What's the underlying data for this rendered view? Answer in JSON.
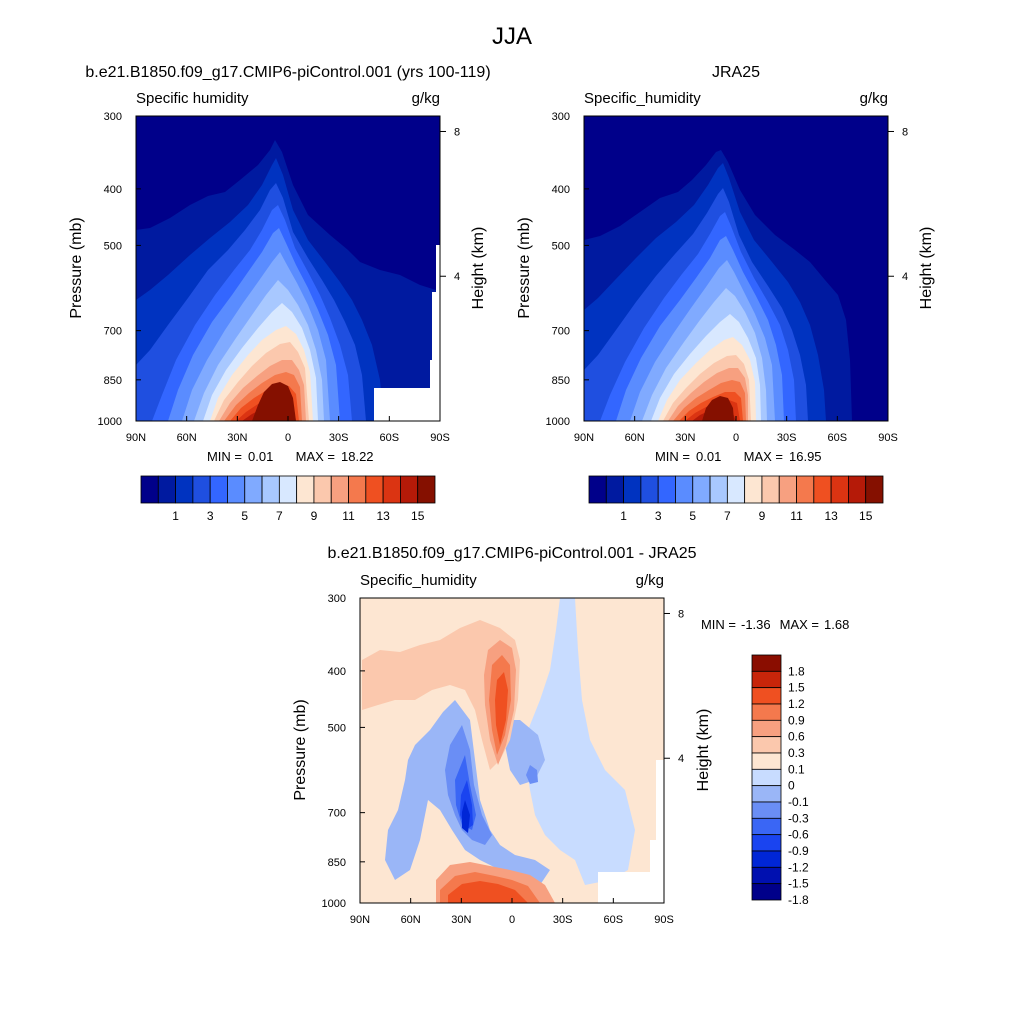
{
  "page": {
    "title": "JJA"
  },
  "palettes": {
    "abs": [
      "#00008a",
      "#001aa0",
      "#0033c0",
      "#1f4fe0",
      "#3366ff",
      "#5a8cff",
      "#80aaff",
      "#a8c8ff",
      "#d8e8ff",
      "#fde6d2",
      "#fbc8ad",
      "#f7a080",
      "#f4794d",
      "#ef5021",
      "#db3412",
      "#b51a08",
      "#851000"
    ],
    "diff": [
      "#00008a",
      "#0010b0",
      "#0026d6",
      "#1a44f0",
      "#3a66f5",
      "#6a8ef5",
      "#9ab6f7",
      "#c8dcff",
      "#fde6d2",
      "#fbc8ad",
      "#f7a080",
      "#f4794d",
      "#ef5021",
      "#c8250a",
      "#8a0d00"
    ]
  },
  "chart_data": [
    {
      "type": "contour",
      "title": "b.e21.B1850.f09_g17.CMIP6-piControl.001 (yrs 100-119)",
      "variable": "Specific humidity",
      "units": "g/kg",
      "ylabel": "Pressure (mb)",
      "y2label": "Height (km)",
      "x_ticks": [
        "90N",
        "60N",
        "30N",
        "0",
        "30S",
        "60S",
        "90S"
      ],
      "y_ticks": [
        "300",
        "400",
        "500",
        "700",
        "850",
        "1000"
      ],
      "y2_ticks": [
        "8",
        "4"
      ],
      "stats": {
        "min_label": "MIN =",
        "min": "0.01",
        "max_label": "MAX =",
        "max": "18.22"
      },
      "colorbar_labels": [
        "1",
        "3",
        "5",
        "7",
        "9",
        "11",
        "13",
        "15"
      ],
      "peak": {
        "lat": -8,
        "value": 18.22
      },
      "ylim": [
        1000,
        300
      ],
      "xlim": [
        90,
        -90
      ]
    },
    {
      "type": "contour",
      "title": "JRA25",
      "variable": "Specific_humidity",
      "units": "g/kg",
      "ylabel": "Pressure (mb)",
      "y2label": "Height (km)",
      "x_ticks": [
        "90N",
        "60N",
        "30N",
        "0",
        "30S",
        "60S",
        "90S"
      ],
      "y_ticks": [
        "300",
        "400",
        "500",
        "700",
        "850",
        "1000"
      ],
      "y2_ticks": [
        "8",
        "4"
      ],
      "stats": {
        "min_label": "MIN =",
        "min": "0.01",
        "max_label": "MAX =",
        "max": "16.95"
      },
      "colorbar_labels": [
        "1",
        "3",
        "5",
        "7",
        "9",
        "11",
        "13",
        "15"
      ],
      "peak": {
        "lat": -8,
        "value": 16.95
      },
      "ylim": [
        1000,
        300
      ],
      "xlim": [
        90,
        -90
      ]
    },
    {
      "type": "contour",
      "title": "b.e21.B1850.f09_g17.CMIP6-piControl.001 - JRA25",
      "variable": "Specific_humidity",
      "units": "g/kg",
      "ylabel": "Pressure (mb)",
      "y2label": "Height (km)",
      "x_ticks": [
        "90N",
        "60N",
        "30N",
        "0",
        "30S",
        "60S",
        "90S"
      ],
      "y_ticks": [
        "300",
        "400",
        "500",
        "700",
        "850",
        "1000"
      ],
      "y2_ticks": [
        "8",
        "4"
      ],
      "stats": {
        "min_label": "MIN =",
        "min": "-1.36",
        "max_label": "MAX =",
        "max": "1.68"
      },
      "colorbar_labels": [
        "1.8",
        "1.5",
        "1.2",
        "0.9",
        "0.6",
        "0.3",
        "0.1",
        "0",
        "-0.1",
        "-0.3",
        "-0.6",
        "-0.9",
        "-1.2",
        "-1.5",
        "-1.8"
      ],
      "ylim": [
        1000,
        300
      ],
      "xlim": [
        90,
        -90
      ]
    }
  ]
}
